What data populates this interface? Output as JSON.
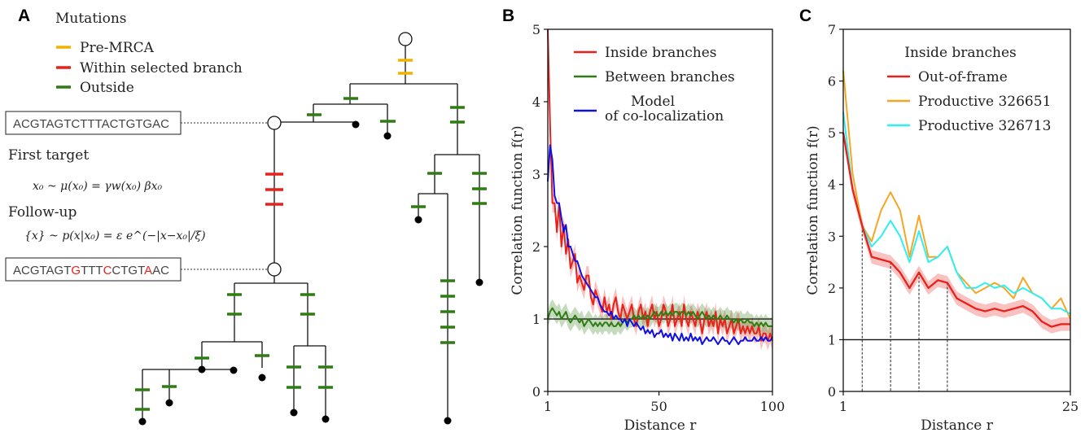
{
  "panel_a": {
    "label": "A",
    "legend_title": "Mutations",
    "legend": [
      {
        "label": "Pre-MRCA",
        "color": "#f0b400"
      },
      {
        "label": "Within selected branch",
        "color": "#e8211b"
      },
      {
        "label": "Outside",
        "color": "#2f7d12"
      }
    ],
    "sequence_top": "ACGTAGTCTTTACTGTGAC",
    "sequence_bottom": [
      {
        "t": "ACGTAGT",
        "mut": false
      },
      {
        "t": "G",
        "mut": true
      },
      {
        "t": "TTT",
        "mut": false
      },
      {
        "t": "C",
        "mut": true
      },
      {
        "t": "CTGT",
        "mut": false
      },
      {
        "t": "A",
        "mut": true
      },
      {
        "t": "AC",
        "mut": false
      }
    ],
    "first_target_label": "First target",
    "first_target_formula": "x₀  ~  μ(x₀) = γw(x₀) βx₀",
    "follow_up_label": "Follow-up",
    "follow_up_formula": "{x}  ~  p(x|x₀) = ε e^(−|x−x₀|/ξ)"
  },
  "chart_data": [
    {
      "panel": "B",
      "type": "line",
      "xlabel": "Distance r",
      "ylabel": "Correlation function f(r)",
      "xlim": [
        1,
        100
      ],
      "ylim": [
        0,
        5
      ],
      "xticks": [
        1,
        50,
        100
      ],
      "yticks": [
        0,
        1,
        2,
        3,
        4,
        5
      ],
      "reference_line": 1,
      "legend_position": "top-right",
      "series": [
        {
          "name": "Inside branches",
          "color": "#e8211b",
          "band": true,
          "x": [
            1,
            2,
            3,
            4,
            5,
            6,
            7,
            8,
            9,
            10,
            11,
            12,
            13,
            14,
            15,
            16,
            17,
            18,
            19,
            20,
            21,
            22,
            23,
            24,
            25,
            26,
            27,
            28,
            29,
            30,
            31,
            32,
            33,
            34,
            35,
            36,
            37,
            38,
            39,
            40,
            41,
            42,
            43,
            44,
            45,
            46,
            47,
            48,
            49,
            50,
            51,
            52,
            53,
            54,
            55,
            56,
            57,
            58,
            59,
            60,
            61,
            62,
            63,
            64,
            65,
            66,
            67,
            68,
            69,
            70,
            71,
            72,
            73,
            74,
            75,
            76,
            77,
            78,
            79,
            80,
            81,
            82,
            83,
            84,
            85,
            86,
            87,
            88,
            89,
            90,
            91,
            92,
            93,
            94,
            95,
            96,
            97,
            98,
            99,
            100
          ],
          "values": [
            5.0,
            3.7,
            2.6,
            2.6,
            2.2,
            2.6,
            2.0,
            2.3,
            1.9,
            2.1,
            1.7,
            1.8,
            1.9,
            1.5,
            1.6,
            1.5,
            1.4,
            1.6,
            1.6,
            1.3,
            1.2,
            1.4,
            1.3,
            1.2,
            1.1,
            1.3,
            1.1,
            1.2,
            1.0,
            1.2,
            1.3,
            1.1,
            1.0,
            1.2,
            1.1,
            1.0,
            1.1,
            1.2,
            1.0,
            0.9,
            1.1,
            1.2,
            1.0,
            1.1,
            0.9,
            1.1,
            1.2,
            1.0,
            1.1,
            0.9,
            1.0,
            1.2,
            1.1,
            0.9,
            1.0,
            1.2,
            0.9,
            1.0,
            1.1,
            0.9,
            1.2,
            1.0,
            0.9,
            1.1,
            1.0,
            0.9,
            1.1,
            1.0,
            0.8,
            1.0,
            1.1,
            0.9,
            1.0,
            0.9,
            1.1,
            0.8,
            1.0,
            0.9,
            1.0,
            0.8,
            0.9,
            1.0,
            0.8,
            0.9,
            1.0,
            0.8,
            0.9,
            0.8,
            0.9,
            0.8,
            0.9,
            0.8,
            0.8,
            0.9,
            0.7,
            0.8,
            0.8,
            0.7,
            0.8,
            0.7
          ]
        },
        {
          "name": "Between branches",
          "color": "#2f7d12",
          "band": true,
          "x": [
            1,
            2,
            3,
            4,
            5,
            6,
            7,
            8,
            9,
            10,
            11,
            12,
            13,
            14,
            15,
            16,
            17,
            18,
            19,
            20,
            21,
            22,
            23,
            24,
            25,
            26,
            27,
            28,
            29,
            30,
            31,
            32,
            33,
            34,
            35,
            36,
            37,
            38,
            39,
            40,
            41,
            42,
            43,
            44,
            45,
            46,
            47,
            48,
            49,
            50,
            51,
            52,
            53,
            54,
            55,
            56,
            57,
            58,
            59,
            60,
            61,
            62,
            63,
            64,
            65,
            66,
            67,
            68,
            69,
            70,
            71,
            72,
            73,
            74,
            75,
            76,
            77,
            78,
            79,
            80,
            81,
            82,
            83,
            84,
            85,
            86,
            87,
            88,
            89,
            90,
            91,
            92,
            93,
            94,
            95,
            96,
            97,
            98,
            99,
            100
          ],
          "values": [
            1.0,
            1.1,
            1.15,
            1.1,
            1.05,
            1.1,
            1.0,
            1.05,
            1.1,
            1.0,
            0.95,
            1.0,
            1.05,
            1.0,
            0.95,
            1.0,
            0.9,
            0.95,
            1.0,
            0.95,
            0.9,
            0.95,
            0.9,
            0.95,
            0.9,
            0.95,
            0.95,
            0.9,
            0.95,
            0.9,
            0.9,
            0.95,
            0.9,
            0.95,
            1.0,
            0.95,
            1.0,
            1.0,
            1.05,
            1.0,
            1.05,
            1.0,
            1.05,
            1.0,
            1.05,
            1.0,
            1.05,
            1.1,
            1.05,
            1.05,
            1.1,
            1.05,
            1.1,
            1.05,
            1.1,
            1.05,
            1.1,
            1.1,
            1.05,
            1.1,
            1.1,
            1.05,
            1.1,
            1.05,
            1.1,
            1.05,
            1.0,
            1.05,
            1.1,
            1.05,
            1.0,
            1.05,
            1.0,
            1.05,
            1.0,
            1.0,
            1.05,
            1.0,
            1.0,
            1.05,
            1.0,
            1.0,
            0.95,
            1.0,
            0.95,
            1.0,
            0.95,
            0.95,
            1.0,
            0.95,
            0.95,
            0.9,
            0.95,
            0.9,
            0.95,
            0.9,
            0.95,
            0.9,
            0.9,
            0.9
          ]
        },
        {
          "name": "Model of co-localization",
          "color": "#1010e0",
          "band": false,
          "x": [
            1,
            2,
            3,
            4,
            5,
            6,
            7,
            8,
            9,
            10,
            11,
            12,
            13,
            14,
            15,
            16,
            17,
            18,
            19,
            20,
            21,
            22,
            23,
            24,
            25,
            26,
            27,
            28,
            29,
            30,
            31,
            32,
            33,
            34,
            35,
            36,
            37,
            38,
            39,
            40,
            41,
            42,
            43,
            44,
            45,
            46,
            47,
            48,
            49,
            50,
            51,
            52,
            53,
            54,
            55,
            56,
            57,
            58,
            59,
            60,
            61,
            62,
            63,
            64,
            65,
            66,
            67,
            68,
            69,
            70,
            71,
            72,
            73,
            74,
            75,
            76,
            77,
            78,
            79,
            80,
            81,
            82,
            83,
            84,
            85,
            86,
            87,
            88,
            89,
            90,
            91,
            92,
            93,
            94,
            95,
            96,
            97,
            98,
            99,
            100
          ],
          "values": [
            2.9,
            3.4,
            3.2,
            2.7,
            2.6,
            2.6,
            2.4,
            2.2,
            2.3,
            2.0,
            2.0,
            1.9,
            1.8,
            1.8,
            1.7,
            1.6,
            1.55,
            1.5,
            1.45,
            1.4,
            1.35,
            1.3,
            1.3,
            1.2,
            1.15,
            1.1,
            1.1,
            1.05,
            1.1,
            1.0,
            1.05,
            1.0,
            1.0,
            0.95,
            1.0,
            0.9,
            1.0,
            0.95,
            0.9,
            0.95,
            0.9,
            0.85,
            0.9,
            0.8,
            0.85,
            0.8,
            0.85,
            0.75,
            0.8,
            0.8,
            0.85,
            0.75,
            0.8,
            0.75,
            0.8,
            0.7,
            0.8,
            0.75,
            0.7,
            0.8,
            0.7,
            0.75,
            0.7,
            0.8,
            0.7,
            0.75,
            0.7,
            0.75,
            0.65,
            0.7,
            0.75,
            0.7,
            0.7,
            0.75,
            0.7,
            0.65,
            0.7,
            0.75,
            0.7,
            0.7,
            0.65,
            0.7,
            0.75,
            0.7,
            0.65,
            0.7,
            0.7,
            0.75,
            0.7,
            0.7,
            0.7,
            0.75,
            0.7,
            0.7,
            0.75,
            0.7,
            0.75,
            0.7,
            0.7,
            0.75
          ]
        }
      ]
    },
    {
      "panel": "C",
      "type": "line",
      "xlabel": "Distance r",
      "ylabel": "Correlation function f(r)",
      "xlim": [
        1,
        25
      ],
      "ylim": [
        0,
        7
      ],
      "xticks": [
        1,
        25
      ],
      "yticks": [
        0,
        1,
        2,
        3,
        4,
        5,
        6,
        7
      ],
      "reference_line": 1,
      "legend_title": "Inside branches",
      "legend_position": "top-right",
      "dashed_verticals": [
        3,
        6,
        9,
        12
      ],
      "series": [
        {
          "name": "Out-of-frame",
          "color": "#e8211b",
          "band": true,
          "x": [
            1,
            2,
            3,
            4,
            5,
            6,
            7,
            8,
            9,
            10,
            11,
            12,
            13,
            14,
            15,
            16,
            17,
            18,
            19,
            20,
            21,
            22,
            23,
            24,
            25
          ],
          "values": [
            5.0,
            3.9,
            3.2,
            2.6,
            2.55,
            2.5,
            2.3,
            2.0,
            2.3,
            2.0,
            2.15,
            2.1,
            1.8,
            1.7,
            1.6,
            1.55,
            1.6,
            1.55,
            1.6,
            1.65,
            1.55,
            1.35,
            1.25,
            1.3,
            1.3
          ]
        },
        {
          "name": "Productive 326651",
          "color": "#f5a623",
          "band": false,
          "x": [
            1,
            2,
            3,
            4,
            5,
            6,
            7,
            8,
            9,
            10,
            11,
            12,
            13,
            14,
            15,
            16,
            17,
            18,
            19,
            20,
            21,
            22,
            23,
            24,
            25
          ],
          "values": [
            6.2,
            4.2,
            3.2,
            2.9,
            3.5,
            3.85,
            3.5,
            2.6,
            3.4,
            2.6,
            2.6,
            2.8,
            2.3,
            2.1,
            1.9,
            2.0,
            2.1,
            2.0,
            1.8,
            2.2,
            1.9,
            1.8,
            1.6,
            1.8,
            1.4
          ]
        },
        {
          "name": "Productive 326713",
          "color": "#2ef0f0",
          "band": false,
          "x": [
            1,
            2,
            3,
            4,
            5,
            6,
            7,
            8,
            9,
            10,
            11,
            12,
            13,
            14,
            15,
            16,
            17,
            18,
            19,
            20,
            21,
            22,
            23,
            24,
            25
          ],
          "values": [
            5.4,
            3.9,
            3.2,
            2.8,
            3.0,
            3.3,
            3.0,
            2.5,
            3.1,
            2.5,
            2.6,
            2.8,
            2.3,
            2.0,
            2.0,
            2.1,
            2.0,
            2.05,
            1.9,
            2.0,
            1.9,
            1.8,
            1.6,
            1.6,
            1.5
          ]
        }
      ]
    }
  ],
  "panel_b_label": "B",
  "panel_c_label": "C"
}
